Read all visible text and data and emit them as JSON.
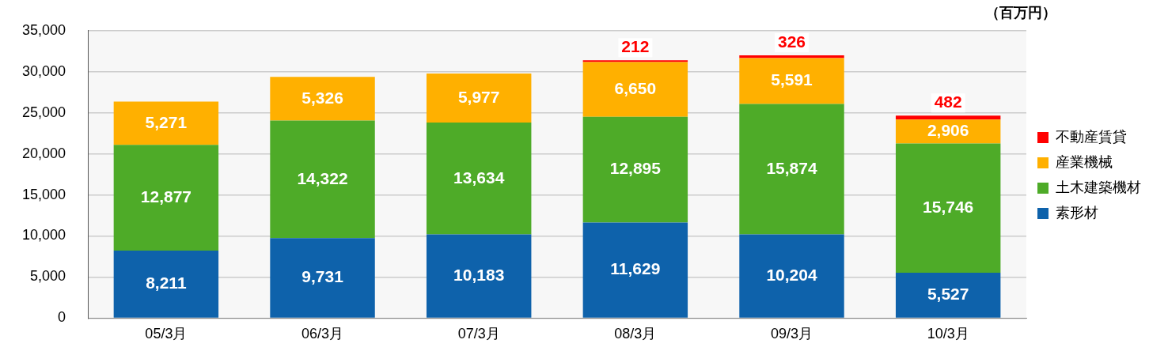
{
  "chart_data": {
    "type": "bar",
    "stacked": true,
    "annotations": [
      "（百万円）"
    ],
    "categories": [
      "05/3月",
      "06/3月",
      "07/3月",
      "08/3月",
      "09/3月",
      "10/3月"
    ],
    "series": [
      {
        "name": "素形材",
        "color": "#0e62ab",
        "values": [
          8211,
          9731,
          10183,
          11629,
          10204,
          5527
        ],
        "value_labels": [
          "8,211",
          "9,731",
          "10,183",
          "11,629",
          "10,204",
          "5,527"
        ]
      },
      {
        "name": "土木建築機材",
        "color": "#4eab28",
        "values": [
          12877,
          14322,
          13634,
          12895,
          15874,
          15746
        ],
        "value_labels": [
          "12,877",
          "14,322",
          "13,634",
          "12,895",
          "15,874",
          "15,746"
        ]
      },
      {
        "name": "産業機械",
        "color": "#ffb000",
        "values": [
          5271,
          5326,
          5977,
          6650,
          5591,
          2906
        ],
        "value_labels": [
          "5,271",
          "5,326",
          "5,977",
          "6,650",
          "5,591",
          "2,906"
        ]
      },
      {
        "name": "不動産賃貸",
        "color": "#ff0000",
        "values": [
          null,
          null,
          null,
          212,
          326,
          482
        ],
        "value_labels": [
          null,
          null,
          null,
          "212",
          "326",
          "482"
        ]
      }
    ],
    "ylim": [
      0,
      35000
    ],
    "yticks": [
      0,
      {
        "value": 5000,
        "label": "5,000"
      },
      {
        "value": 10000,
        "label": "10,000"
      },
      {
        "value": 15000,
        "label": "15,000"
      },
      {
        "value": 20000,
        "label": "20,000"
      },
      {
        "value": 25000,
        "label": "25,000"
      },
      {
        "value": 30000,
        "label": "30,000"
      },
      {
        "value": 35000,
        "label": "35,000"
      }
    ],
    "grid": "y",
    "legend": "right"
  }
}
